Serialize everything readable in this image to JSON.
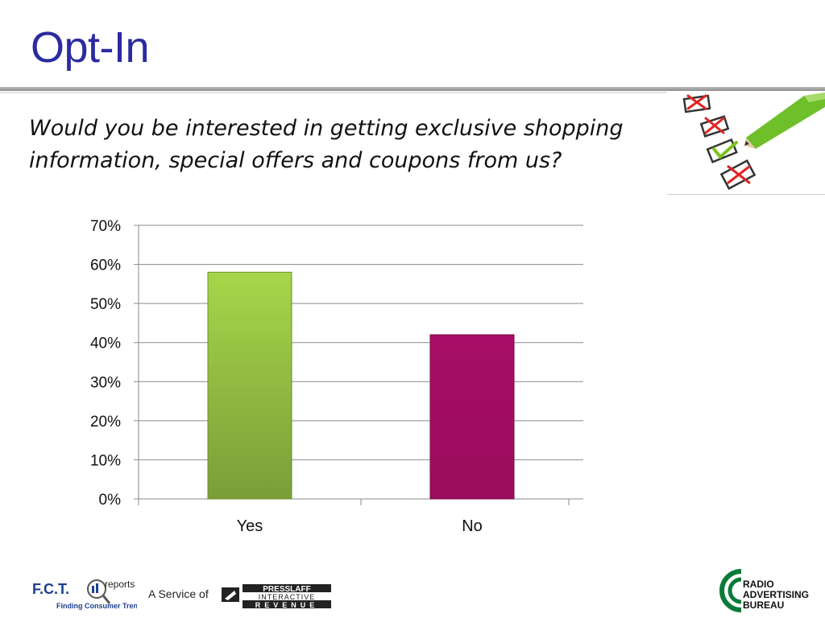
{
  "slide": {
    "title": "Opt-In",
    "question": "Would you be interested in getting exclusive shopping information, special offers and coupons from us?"
  },
  "chart_data": {
    "type": "bar",
    "categories": [
      "Yes",
      "No"
    ],
    "values": [
      58,
      42
    ],
    "ylim": [
      0,
      70
    ],
    "yticks": [
      "0%",
      "10%",
      "20%",
      "30%",
      "40%",
      "50%",
      "60%",
      "70%"
    ],
    "grid": true,
    "legend": "none",
    "colors": [
      "#8db83a",
      "#a0105f"
    ]
  },
  "footer": {
    "fct_logo_text": "F.C.T.",
    "fct_reports": "reports",
    "fct_tagline": "Finding Consumer Trends",
    "service_of": "A Service of",
    "presslaff_line1": "PRESSLAFF",
    "presslaff_line2": "INTERACTIVE",
    "presslaff_line3": "REVENUE",
    "rab_line1": "RADIO",
    "rab_line2": "ADVERTISING",
    "rab_line3": "BUREAU"
  },
  "icons": [
    "checklist-pencil-icon",
    "rab-logo-icon",
    "presslaff-logo-icon"
  ]
}
